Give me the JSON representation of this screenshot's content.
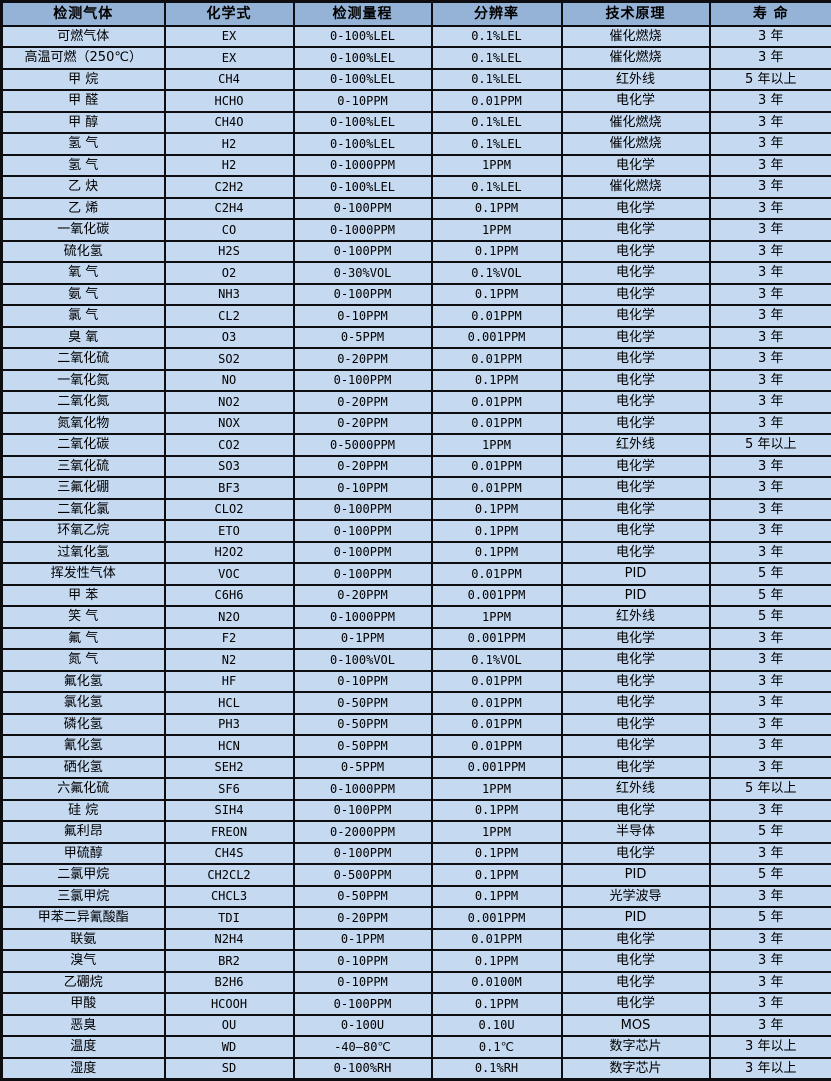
{
  "colors": {
    "header_bg": "#95b3d7",
    "row_bg": "#c5d9f1",
    "border": "#0d0d12",
    "text": "#000000"
  },
  "table": {
    "columns": [
      "检测气体",
      "化学式",
      "检测量程",
      "分辨率",
      "技术原理",
      "寿 命"
    ],
    "rows": [
      [
        "可燃气体",
        "EX",
        "0-100%LEL",
        "0.1%LEL",
        "催化燃烧",
        "3 年"
      ],
      [
        "高温可燃（250℃）",
        "EX",
        "0-100%LEL",
        "0.1%LEL",
        "催化燃烧",
        "3 年"
      ],
      [
        "甲 烷",
        "CH4",
        "0-100%LEL",
        "0.1%LEL",
        "红外线",
        "5 年以上"
      ],
      [
        "甲 醛",
        "HCHO",
        "0-10PPM",
        "0.01PPM",
        "电化学",
        "3 年"
      ],
      [
        "甲 醇",
        "CH4O",
        "0-100%LEL",
        "0.1%LEL",
        "催化燃烧",
        "3 年"
      ],
      [
        "氢 气",
        "H2",
        "0-100%LEL",
        "0.1%LEL",
        "催化燃烧",
        "3 年"
      ],
      [
        "氢 气",
        "H2",
        "0-1000PPM",
        "1PPM",
        "电化学",
        "3 年"
      ],
      [
        "乙 炔",
        "C2H2",
        "0-100%LEL",
        "0.1%LEL",
        "催化燃烧",
        "3 年"
      ],
      [
        "乙 烯",
        "C2H4",
        "0-100PPM",
        "0.1PPM",
        "电化学",
        "3 年"
      ],
      [
        "一氧化碳",
        "CO",
        "0-1000PPM",
        "1PPM",
        "电化学",
        "3 年"
      ],
      [
        "硫化氢",
        "H2S",
        "0-100PPM",
        "0.1PPM",
        "电化学",
        "3 年"
      ],
      [
        "氧 气",
        "O2",
        "0-30%VOL",
        "0.1%VOL",
        "电化学",
        "3 年"
      ],
      [
        "氨 气",
        "NH3",
        "0-100PPM",
        "0.1PPM",
        "电化学",
        "3 年"
      ],
      [
        "氯 气",
        "CL2",
        "0-10PPM",
        "0.01PPM",
        "电化学",
        "3 年"
      ],
      [
        "臭 氧",
        "O3",
        "0-5PPM",
        "0.001PPM",
        "电化学",
        "3 年"
      ],
      [
        "二氧化硫",
        "SO2",
        "0-20PPM",
        "0.01PPM",
        "电化学",
        "3 年"
      ],
      [
        "一氧化氮",
        "NO",
        "0-100PPM",
        "0.1PPM",
        "电化学",
        "3 年"
      ],
      [
        "二氧化氮",
        "NO2",
        "0-20PPM",
        "0.01PPM",
        "电化学",
        "3 年"
      ],
      [
        "氮氧化物",
        "NOX",
        "0-20PPM",
        "0.01PPM",
        "电化学",
        "3 年"
      ],
      [
        "二氧化碳",
        "CO2",
        "0-5000PPM",
        "1PPM",
        "红外线",
        "5 年以上"
      ],
      [
        "三氧化硫",
        "SO3",
        "0-20PPM",
        "0.01PPM",
        "电化学",
        "3 年"
      ],
      [
        "三氟化硼",
        "BF3",
        "0-10PPM",
        "0.01PPM",
        "电化学",
        "3 年"
      ],
      [
        "二氧化氯",
        "CLO2",
        "0-100PPM",
        "0.1PPM",
        "电化学",
        "3 年"
      ],
      [
        "环氧乙烷",
        "ETO",
        "0-100PPM",
        "0.1PPM",
        "电化学",
        "3 年"
      ],
      [
        "过氧化氢",
        "H2O2",
        "0-100PPM",
        "0.1PPM",
        "电化学",
        "3 年"
      ],
      [
        "挥发性气体",
        "VOC",
        "0-100PPM",
        "0.01PPM",
        "PID",
        "5 年"
      ],
      [
        "甲 苯",
        "C6H6",
        "0-20PPM",
        "0.001PPM",
        "PID",
        "5 年"
      ],
      [
        "笑 气",
        "N2O",
        "0-1000PPM",
        "1PPM",
        "红外线",
        "5 年"
      ],
      [
        "氟 气",
        "F2",
        "0-1PPM",
        "0.001PPM",
        "电化学",
        "3 年"
      ],
      [
        "氮 气",
        "N2",
        "0-100%VOL",
        "0.1%VOL",
        "电化学",
        "3 年"
      ],
      [
        "氟化氢",
        "HF",
        "0-10PPM",
        "0.01PPM",
        "电化学",
        "3 年"
      ],
      [
        "氯化氢",
        "HCL",
        "0-50PPM",
        "0.01PPM",
        "电化学",
        "3 年"
      ],
      [
        "磷化氢",
        "PH3",
        "0-50PPM",
        "0.01PPM",
        "电化学",
        "3 年"
      ],
      [
        "氰化氢",
        "HCN",
        "0-50PPM",
        "0.01PPM",
        "电化学",
        "3 年"
      ],
      [
        "硒化氢",
        "SEH2",
        "0-5PPM",
        "0.001PPM",
        "电化学",
        "3 年"
      ],
      [
        "六氟化硫",
        "SF6",
        "0-1000PPM",
        "1PPM",
        "红外线",
        "5 年以上"
      ],
      [
        "硅 烷",
        "SIH4",
        "0-100PPM",
        "0.1PPM",
        "电化学",
        "3 年"
      ],
      [
        "氟利昂",
        "FREON",
        "0-2000PPM",
        "1PPM",
        "半导体",
        "5 年"
      ],
      [
        "甲硫醇",
        "CH4S",
        "0-100PPM",
        "0.1PPM",
        "电化学",
        "3 年"
      ],
      [
        "二氯甲烷",
        "CH2CL2",
        "0-500PPM",
        "0.1PPM",
        "PID",
        "5 年"
      ],
      [
        "三氯甲烷",
        "CHCL3",
        "0-50PPM",
        "0.1PPM",
        "光学波导",
        "3 年"
      ],
      [
        "甲苯二异氰酸酯",
        "TDI",
        "0-20PPM",
        "0.001PPM",
        "PID",
        "5 年"
      ],
      [
        "联氨",
        "N2H4",
        "0-1PPM",
        "0.01PPM",
        "电化学",
        "3 年"
      ],
      [
        "溴气",
        "BR2",
        "0-10PPM",
        "0.1PPM",
        "电化学",
        "3 年"
      ],
      [
        "乙硼烷",
        "B2H6",
        "0-10PPM",
        "0.0100M",
        "电化学",
        "3 年"
      ],
      [
        "甲酸",
        "HCOOH",
        "0-100PPM",
        "0.1PPM",
        "电化学",
        "3 年"
      ],
      [
        "恶臭",
        "OU",
        "0-100U",
        "0.10U",
        "MOS",
        "3 年"
      ],
      [
        "温度",
        "WD",
        "-40—80℃",
        "0.1℃",
        "数字芯片",
        "3 年以上"
      ],
      [
        "湿度",
        "SD",
        "0-100%RH",
        "0.1%RH",
        "数字芯片",
        "3 年以上"
      ]
    ]
  }
}
